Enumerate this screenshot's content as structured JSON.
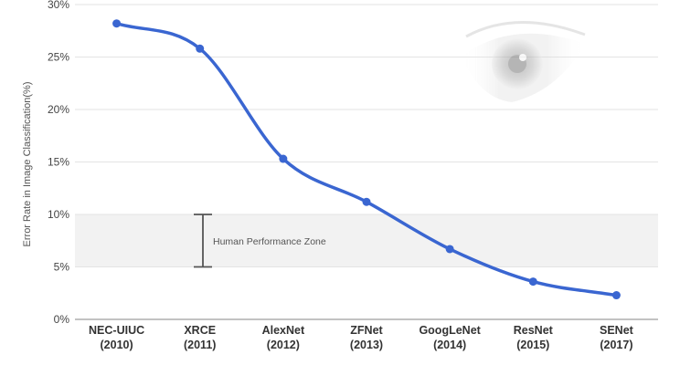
{
  "chart_data": {
    "type": "line",
    "title": "",
    "xlabel": "",
    "ylabel": "Error Rate in Image Classification(%)",
    "categories": [
      [
        "NEC-UIUC",
        "(2010)"
      ],
      [
        "XRCE",
        "(2011)"
      ],
      [
        "AlexNet",
        "(2012)"
      ],
      [
        "ZFNet",
        "(2013)"
      ],
      [
        "GoogLeNet",
        "(2014)"
      ],
      [
        "ResNet",
        "(2015)"
      ],
      [
        "SENet",
        "(2017)"
      ]
    ],
    "series": [
      {
        "values": [
          28.2,
          25.8,
          15.3,
          11.2,
          6.7,
          3.6,
          2.3
        ]
      }
    ],
    "ylim": [
      0,
      30
    ],
    "yticks": [
      0,
      5,
      10,
      15,
      20,
      25,
      30
    ],
    "ytick_labels": [
      "0%",
      "5%",
      "10%",
      "15%",
      "20%",
      "25%",
      "30%"
    ],
    "grid": true,
    "legend": "none",
    "annotation": {
      "label": "Human Performance Zone",
      "range": [
        5,
        10
      ]
    },
    "colors": {
      "line": "#3a66d1",
      "zone": "#f2f2f2",
      "grid": "#e3e3e3",
      "bracket": "#555555"
    }
  }
}
